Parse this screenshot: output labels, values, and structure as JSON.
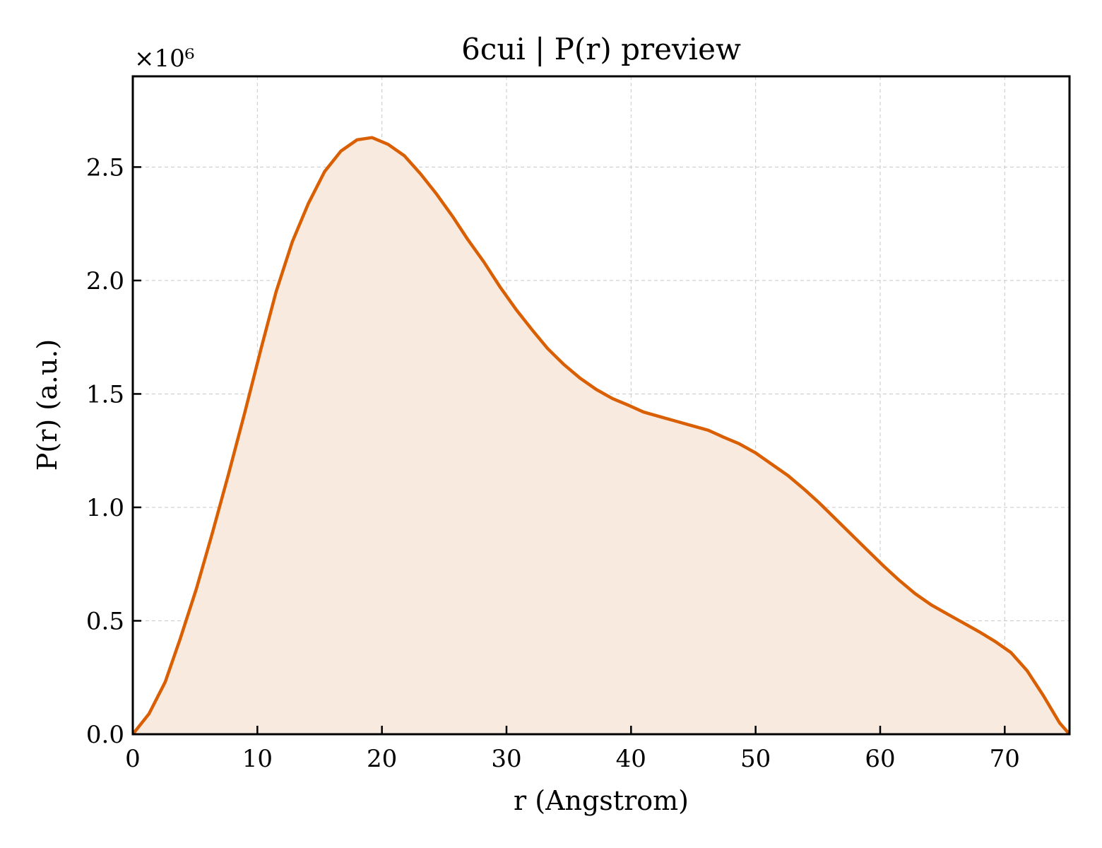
{
  "chart_data": {
    "type": "area",
    "title": "6cui | P(r) preview",
    "xlabel": "r (Angstrom)",
    "ylabel": "P(r) (a.u.)",
    "y_offset_label": "×10⁶",
    "xlim": [
      0,
      75.2
    ],
    "ylim": [
      0,
      2.9
    ],
    "y_scale_factor": 1000000,
    "xticks": [
      0,
      10,
      20,
      30,
      40,
      50,
      60,
      70
    ],
    "xtick_labels": [
      "0",
      "10",
      "20",
      "30",
      "40",
      "50",
      "60",
      "70"
    ],
    "yticks": [
      0,
      0.5,
      1.0,
      1.5,
      2.0,
      2.5
    ],
    "ytick_labels": [
      "0.0",
      "0.5",
      "1.0",
      "1.5",
      "2.0",
      "2.5"
    ],
    "grid": true,
    "line_color": "#d95f02",
    "fill_color": "#f9eadf",
    "series": [
      {
        "x": [
          0,
          1.3,
          2.6,
          3.8,
          5.1,
          6.4,
          7.7,
          9.0,
          10.3,
          11.5,
          12.8,
          14.1,
          15.4,
          16.7,
          18.0,
          19.2,
          20.5,
          21.8,
          23.1,
          24.4,
          25.7,
          26.9,
          28.2,
          29.5,
          30.8,
          32.1,
          33.3,
          34.6,
          35.9,
          37.2,
          38.5,
          39.8,
          41.0,
          42.3,
          43.6,
          44.9,
          46.2,
          47.4,
          48.7,
          50.0,
          51.3,
          52.6,
          53.9,
          55.1,
          56.4,
          57.7,
          59.0,
          60.3,
          61.5,
          62.8,
          64.1,
          65.4,
          66.7,
          68.0,
          69.2,
          70.5,
          71.8,
          73.1,
          74.4,
          75.2
        ],
        "y": [
          0.0,
          0.09,
          0.23,
          0.42,
          0.64,
          0.89,
          1.15,
          1.42,
          1.7,
          1.95,
          2.17,
          2.34,
          2.48,
          2.57,
          2.62,
          2.63,
          2.6,
          2.55,
          2.47,
          2.38,
          2.28,
          2.18,
          2.08,
          1.97,
          1.87,
          1.78,
          1.7,
          1.63,
          1.57,
          1.52,
          1.48,
          1.45,
          1.42,
          1.4,
          1.38,
          1.36,
          1.34,
          1.31,
          1.28,
          1.24,
          1.19,
          1.14,
          1.08,
          1.02,
          0.95,
          0.88,
          0.81,
          0.74,
          0.68,
          0.62,
          0.57,
          0.53,
          0.49,
          0.45,
          0.41,
          0.36,
          0.28,
          0.17,
          0.05,
          0.0
        ]
      }
    ]
  }
}
